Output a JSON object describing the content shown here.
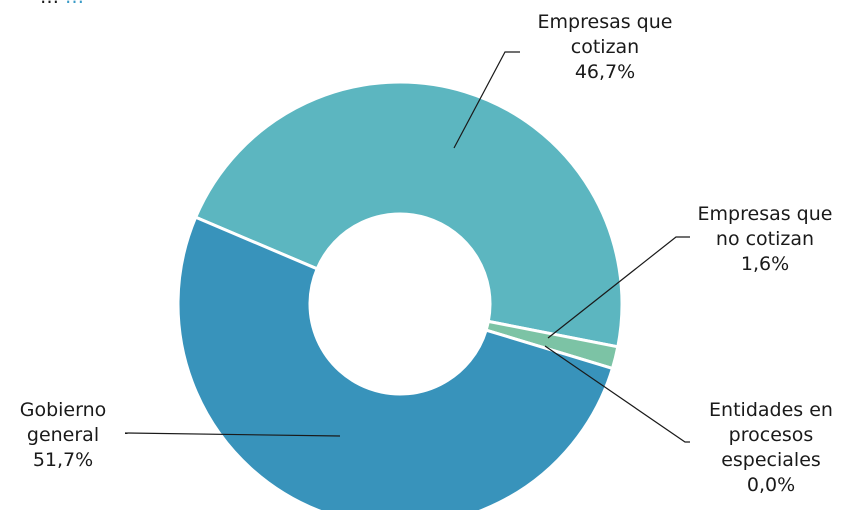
{
  "header_fragment": {
    "text_left": "…",
    "text_accent": "…"
  },
  "colors": {
    "empresas_que_cotizan": "#5cb6c0",
    "empresas_que_no_cotizan": "#7cc3a5",
    "entidades_en_procesos_especiales": "#7cc3a5",
    "gobierno_general": "#3893bb",
    "separator": "#ffffff",
    "leader_line": "#1a1a1a"
  },
  "chart_data": {
    "type": "pie",
    "donut": true,
    "categories": [
      "Empresas que cotizan",
      "Empresas que no cotizan",
      "Entidades en procesos especiales",
      "Gobierno general"
    ],
    "values": [
      46.7,
      1.6,
      0.0,
      51.7
    ],
    "unit": "%",
    "labels": [
      {
        "name_lines": [
          "Empresas que",
          "cotizan"
        ],
        "value": "46,7%"
      },
      {
        "name_lines": [
          "Empresas que",
          "no cotizan"
        ],
        "value": "1,6%"
      },
      {
        "name_lines": [
          "Entidades en",
          "procesos",
          "especiales"
        ],
        "value": "0,0%"
      },
      {
        "name_lines": [
          "Gobierno",
          "general"
        ],
        "value": "51,7%"
      }
    ]
  }
}
